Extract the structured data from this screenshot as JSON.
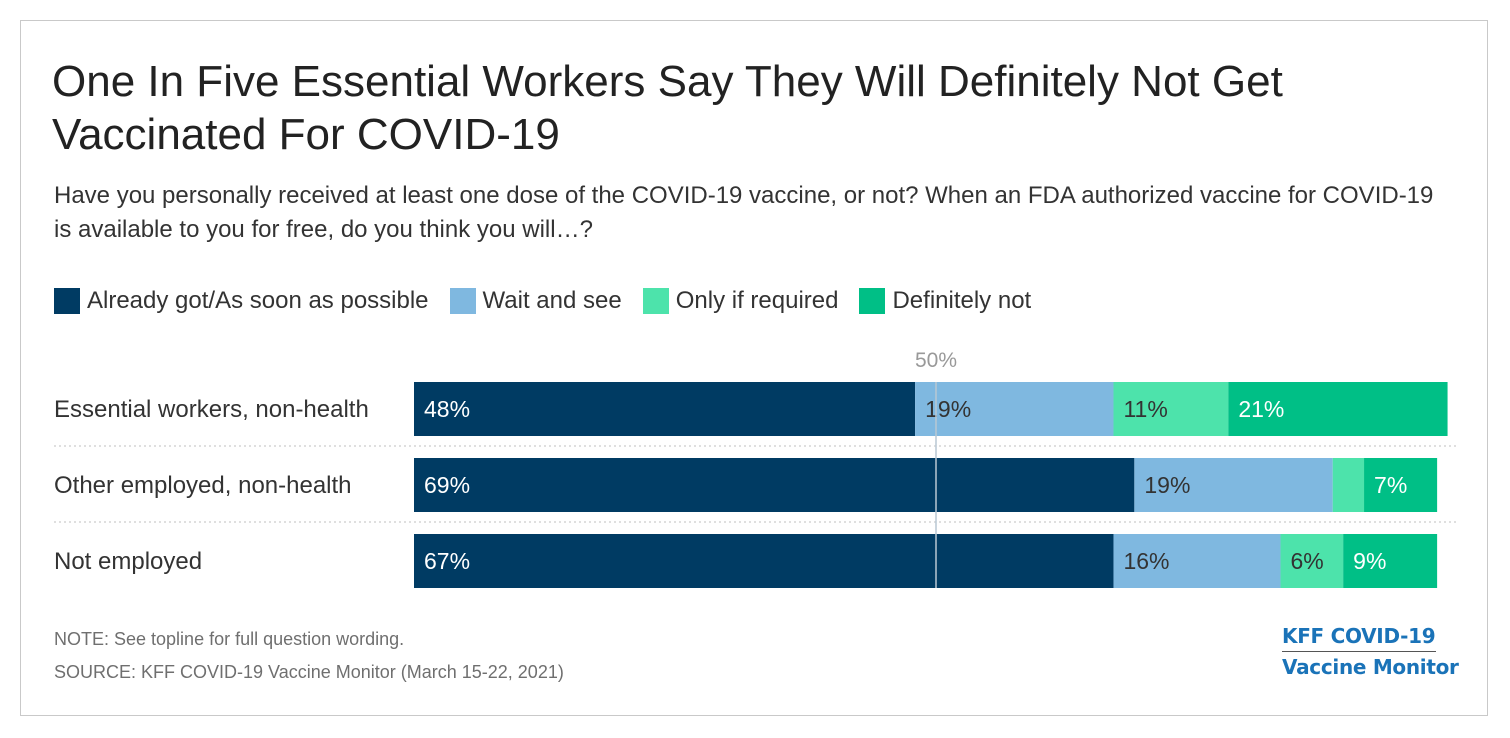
{
  "title": "One In Five Essential Workers Say They Will Definitely Not Get Vaccinated For COVID-19",
  "subtitle": "Have you personally received at least one dose of the COVID-19 vaccine, or not? When an FDA authorized vaccine for COVID-19 is available to you for free, do you think you will…?",
  "note": "NOTE: See topline for full question wording.",
  "source": "SOURCE: KFF COVID-19 Vaccine Monitor (March 15-22, 2021)",
  "logo": {
    "line1": "KFF COVID-19",
    "line2": "Vaccine Monitor"
  },
  "colors": {
    "already": "#003b63",
    "wait": "#7fb8e0",
    "only": "#4de3ab",
    "definitely": "#00bf86",
    "reference_line": "#b8c7d3",
    "divider": "#cccccc"
  },
  "legend": [
    {
      "label": "Already got/As soon as possible",
      "color": "#003b63"
    },
    {
      "label": "Wait and see",
      "color": "#7fb8e0"
    },
    {
      "label": "Only if required",
      "color": "#4de3ab"
    },
    {
      "label": "Definitely not",
      "color": "#00bf86"
    }
  ],
  "chart_data": {
    "type": "bar",
    "orientation": "horizontal",
    "stacked": true,
    "title": "One In Five Essential Workers Say They Will Definitely Not Get Vaccinated For COVID-19",
    "xlim": [
      0,
      100
    ],
    "reference_line": {
      "value": 50,
      "label": "50%"
    },
    "categories": [
      "Essential workers, non-health",
      "Other employed, non-health",
      "Not employed"
    ],
    "series": [
      {
        "name": "Already got/As soon as possible",
        "values": [
          48,
          69,
          67
        ],
        "labels": [
          "48%",
          "69%",
          "67%"
        ],
        "color": "#003b63",
        "text_color": "#ffffff"
      },
      {
        "name": "Wait and see",
        "values": [
          19,
          19,
          16
        ],
        "labels": [
          "19%",
          "19%",
          "16%"
        ],
        "color": "#7fb8e0",
        "text_color": "#333333"
      },
      {
        "name": "Only if required",
        "values": [
          11,
          3,
          6
        ],
        "labels": [
          "11%",
          "",
          "6%"
        ],
        "color": "#4de3ab",
        "text_color": "#333333"
      },
      {
        "name": "Definitely not",
        "values": [
          21,
          7,
          9
        ],
        "labels": [
          "21%",
          "7%",
          "9%"
        ],
        "color": "#00bf86",
        "text_color": "#ffffff"
      }
    ],
    "legend_position": "top-left",
    "grid": false
  }
}
